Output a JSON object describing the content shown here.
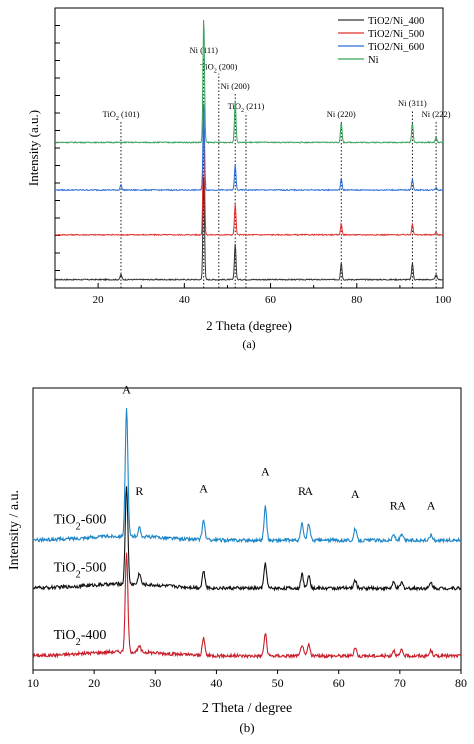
{
  "chart_data": [
    {
      "panel": "a",
      "panel_label": "(a)",
      "type": "line",
      "xlabel": "2 Theta (degree)",
      "ylabel": "Intensity (a.u.)",
      "xlim": [
        10,
        100
      ],
      "xticks": [
        20,
        40,
        60,
        80,
        100
      ],
      "legend_position": "top-right",
      "series": [
        {
          "name": "TiO2/Ni_400",
          "color": "#333333",
          "baseline": 0.03,
          "peaks": [
            [
              25.3,
              0.02
            ],
            [
              44.5,
              0.38
            ],
            [
              51.8,
              0.13
            ],
            [
              76.4,
              0.06
            ],
            [
              92.9,
              0.06
            ],
            [
              98.4,
              0.02
            ]
          ]
        },
        {
          "name": "TiO2/Ni_500",
          "color": "#e0322f",
          "baseline": 0.19,
          "peaks": [
            [
              44.5,
              0.43
            ],
            [
              51.8,
              0.11
            ],
            [
              76.4,
              0.04
            ],
            [
              92.9,
              0.04
            ],
            [
              98.4,
              0.01
            ]
          ]
        },
        {
          "name": "TiO2/Ni_600",
          "color": "#2f6fd6",
          "baseline": 0.35,
          "peaks": [
            [
              25.3,
              0.02
            ],
            [
              44.5,
              0.32
            ],
            [
              51.8,
              0.09
            ],
            [
              76.4,
              0.04
            ],
            [
              92.9,
              0.04
            ],
            [
              98.4,
              0.01
            ]
          ]
        },
        {
          "name": "Ni",
          "color": "#3aa35c",
          "baseline": 0.52,
          "peaks": [
            [
              44.5,
              0.45
            ],
            [
              51.8,
              0.15
            ],
            [
              76.4,
              0.07
            ],
            [
              92.9,
              0.07
            ],
            [
              98.4,
              0.02
            ]
          ]
        }
      ],
      "reference_lines": [
        {
          "x": 25.3,
          "label": "TiO2 (101)",
          "label_y": 0.61
        },
        {
          "x": 44.5,
          "label": "Ni (111)",
          "label_y": 0.84
        },
        {
          "x": 48.0,
          "label": "TiO2 (200)",
          "label_y": 0.78
        },
        {
          "x": 51.8,
          "label": "Ni (200)",
          "label_y": 0.71
        },
        {
          "x": 54.3,
          "label": "TiO2 (211)",
          "label_y": 0.64
        },
        {
          "x": 76.4,
          "label": "Ni (220)",
          "label_y": 0.61
        },
        {
          "x": 92.9,
          "label": "Ni (311)",
          "label_y": 0.65
        },
        {
          "x": 98.4,
          "label": "Ni (222)",
          "label_y": 0.61
        }
      ]
    },
    {
      "panel": "b",
      "panel_label": "(b)",
      "type": "line",
      "xlabel": "2 Theta / degree",
      "ylabel": "Intensity / a.u.",
      "xlim": [
        10,
        80
      ],
      "xticks": [
        10,
        20,
        30,
        40,
        50,
        60,
        70,
        80
      ],
      "series": [
        {
          "name": "TiO2-400",
          "color": "#c81e2a",
          "baseline": 0.05,
          "peaks": [
            [
              25.3,
              0.35
            ],
            [
              27.4,
              0.02
            ],
            [
              37.9,
              0.06
            ],
            [
              48.0,
              0.08
            ],
            [
              54.0,
              0.04
            ],
            [
              55.1,
              0.04
            ],
            [
              62.7,
              0.03
            ],
            [
              69.0,
              0.02
            ],
            [
              70.3,
              0.02
            ],
            [
              75.1,
              0.02
            ]
          ]
        },
        {
          "name": "TiO2-500",
          "color": "#111111",
          "baseline": 0.29,
          "peaks": [
            [
              25.3,
              0.35
            ],
            [
              27.4,
              0.04
            ],
            [
              37.9,
              0.06
            ],
            [
              48.0,
              0.09
            ],
            [
              54.0,
              0.05
            ],
            [
              55.1,
              0.05
            ],
            [
              62.7,
              0.03
            ],
            [
              69.0,
              0.02
            ],
            [
              70.3,
              0.02
            ],
            [
              75.1,
              0.02
            ]
          ]
        },
        {
          "name": "TiO2-600",
          "color": "#1c86c8",
          "baseline": 0.46,
          "peaks": [
            [
              25.3,
              0.45
            ],
            [
              27.4,
              0.03
            ],
            [
              37.9,
              0.07
            ],
            [
              48.0,
              0.12
            ],
            [
              54.0,
              0.06
            ],
            [
              55.1,
              0.06
            ],
            [
              62.7,
              0.04
            ],
            [
              69.0,
              0.02
            ],
            [
              70.3,
              0.02
            ],
            [
              75.1,
              0.02
            ]
          ]
        }
      ],
      "peak_labels": [
        {
          "x": 25.3,
          "text": "A",
          "y": 0.98
        },
        {
          "x": 27.4,
          "text": "R",
          "y": 0.62
        },
        {
          "x": 37.9,
          "text": "A",
          "y": 0.63
        },
        {
          "x": 48.0,
          "text": "A",
          "y": 0.69
        },
        {
          "x": 54.0,
          "text": "R",
          "y": 0.62
        },
        {
          "x": 55.1,
          "text": "A",
          "y": 0.62
        },
        {
          "x": 62.7,
          "text": "A",
          "y": 0.61
        },
        {
          "x": 69.0,
          "text": "R",
          "y": 0.57
        },
        {
          "x": 70.3,
          "text": "A",
          "y": 0.57
        },
        {
          "x": 75.1,
          "text": "A",
          "y": 0.57
        }
      ]
    }
  ]
}
